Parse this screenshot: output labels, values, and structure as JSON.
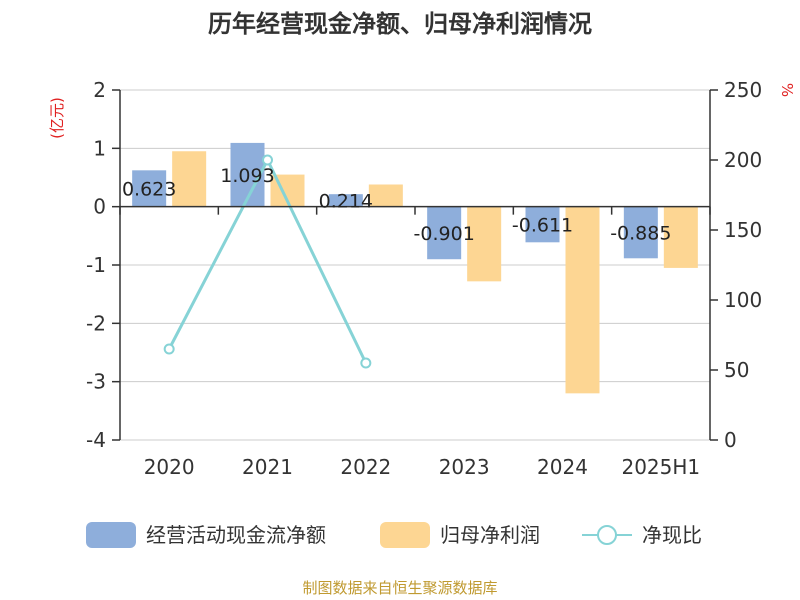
{
  "title": "历年经营现金净额、归母净利润情况",
  "source": "制图数据来自恒生聚源数据库",
  "chart_data": {
    "type": "bar",
    "categories": [
      "2020",
      "2021",
      "2022",
      "2023",
      "2024",
      "2025H1"
    ],
    "left_axis": {
      "unit": "(亿元)",
      "range": [
        -4,
        2
      ],
      "ticks": [
        "2",
        "1",
        "0",
        "-1",
        "-2",
        "-3",
        "-4"
      ]
    },
    "right_axis": {
      "unit": "%",
      "range": [
        0,
        250
      ],
      "ticks": [
        "250",
        "200",
        "150",
        "100",
        "50",
        "0"
      ]
    },
    "series": [
      {
        "name": "经营活动现金流净额",
        "kind": "bar",
        "axis": "left",
        "color": "#8eaedb",
        "values": [
          0.623,
          1.093,
          0.214,
          -0.901,
          -0.611,
          -0.885
        ],
        "labels": [
          "0.623",
          "1.093",
          "0.214",
          "-0.901",
          "-0.611",
          "-0.885"
        ]
      },
      {
        "name": "归母净利润",
        "kind": "bar",
        "axis": "left",
        "color": "#fdd693",
        "values": [
          0.95,
          0.55,
          0.38,
          -1.28,
          -3.2,
          -1.05
        ]
      },
      {
        "name": "净现比",
        "kind": "line",
        "axis": "right",
        "color": "#86d3d6",
        "values": [
          65,
          200,
          55,
          null,
          null,
          null
        ]
      }
    ],
    "grid": true,
    "legend": "bottom"
  }
}
